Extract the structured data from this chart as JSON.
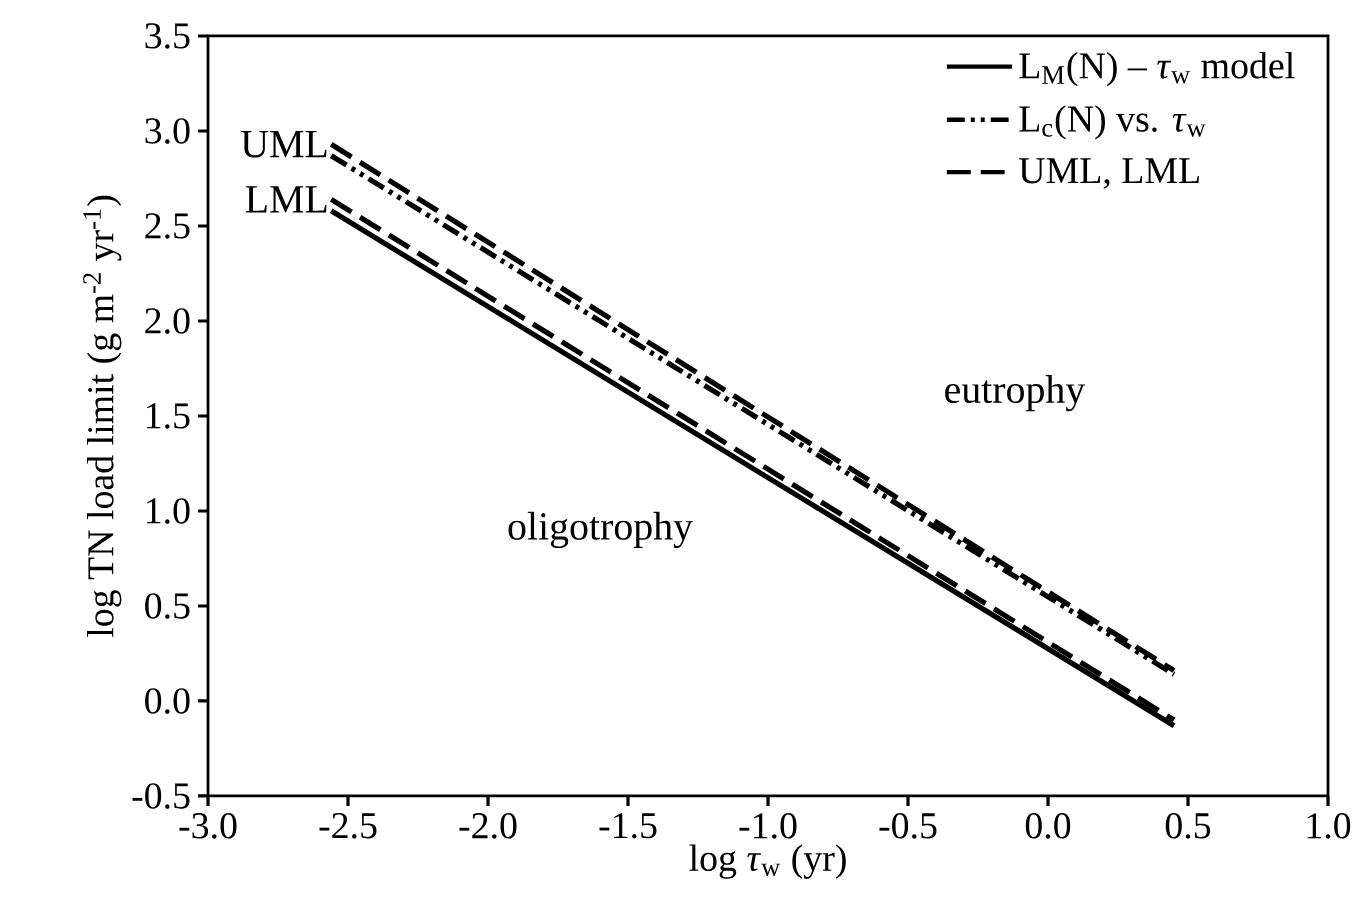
{
  "chart_data": {
    "type": "line",
    "xlabel": "log *τ*$_{w}$  (yr)",
    "ylabel": "log TN load limit  (g m$^{-2}$ yr$^{-1}$)",
    "xlim": [
      -3,
      1
    ],
    "xticks": [
      {
        "value": -3,
        "label": "-3.0"
      },
      {
        "value": -2.5,
        "label": "-2.5"
      },
      {
        "value": -2,
        "label": "-2.0"
      },
      {
        "value": -1.5,
        "label": "-1.5"
      },
      {
        "value": -1,
        "label": "-1.0"
      },
      {
        "value": -0.5,
        "label": "-0.5"
      },
      {
        "value": 0,
        "label": "0.0"
      },
      {
        "value": 0.5,
        "label": "0.5"
      },
      {
        "value": 1,
        "label": "1.0"
      }
    ],
    "ylim": [
      -0.5,
      3.5
    ],
    "yticks": [
      {
        "value": -0.5,
        "label": "-0.5"
      },
      {
        "value": 0,
        "label": "0.0"
      },
      {
        "value": 0.5,
        "label": "0.5"
      },
      {
        "value": 1,
        "label": "1.0"
      },
      {
        "value": 1.5,
        "label": "1.5"
      },
      {
        "value": 2,
        "label": "2.0"
      },
      {
        "value": 2.5,
        "label": "2.5"
      },
      {
        "value": 3,
        "label": "3.0"
      },
      {
        "value": 3.5,
        "label": "3.5"
      }
    ],
    "legend": "top right",
    "grid": false,
    "marker": "none",
    "x": [
      -2.56,
      0.45
    ],
    "series": [
      {
        "name": "L$_{M}$(N) – *τ*$_{w}$ model",
        "color": "#000000",
        "line_style": "solid",
        "values": [
          2.58,
          -0.13
        ]
      },
      {
        "name": "L$_{c}$(N) vs. *τ*$_{w}$",
        "color": "#000000",
        "line_style": "dashdotdot",
        "values": [
          2.87,
          0.14
        ]
      },
      {
        "name": "UML, LML",
        "color": "#000000",
        "line_style": "dashed",
        "values": [
          2.93,
          0.16
        ]
      },
      {
        "color": "#000000",
        "line_style": "dashed",
        "values": [
          2.64,
          -0.1
        ]
      }
    ],
    "annotations": [
      {
        "text": "UML",
        "x": -2.56,
        "y": 2.93
      },
      {
        "text": "LML",
        "x": -2.56,
        "y": 2.64
      },
      "eutrophy",
      "oligotrophy"
    ]
  }
}
